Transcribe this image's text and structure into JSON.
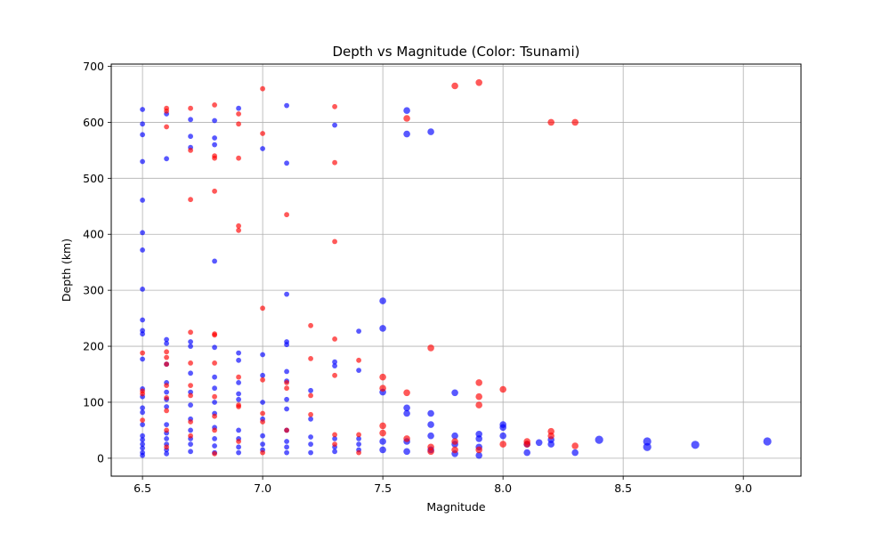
{
  "chart_data": {
    "type": "scatter",
    "title": "Depth vs Magnitude (Color: Tsunami)",
    "xlabel": "Magnitude",
    "ylabel": "Depth (km)",
    "xlim": [
      6.37,
      9.24
    ],
    "ylim": [
      -32,
      704
    ],
    "xticks": [
      "6.5",
      "7.0",
      "7.5",
      "8.0",
      "8.5",
      "9.0"
    ],
    "yticks": [
      "0",
      "100",
      "200",
      "300",
      "400",
      "500",
      "600",
      "700"
    ],
    "grid": true,
    "colors": {
      "tsunami": "#ff0000",
      "no_tsunami": "#0000ff"
    },
    "series": [
      {
        "color": "#0000ff",
        "points": [
          [
            6.5,
            623
          ],
          [
            6.5,
            597
          ],
          [
            6.5,
            578
          ],
          [
            6.5,
            530
          ],
          [
            6.5,
            461
          ],
          [
            6.5,
            403
          ],
          [
            6.5,
            372
          ],
          [
            6.5,
            302
          ],
          [
            6.5,
            247
          ],
          [
            6.5,
            228
          ],
          [
            6.5,
            222
          ],
          [
            6.5,
            177
          ],
          [
            6.5,
            124
          ],
          [
            6.5,
            110
          ],
          [
            6.5,
            90
          ],
          [
            6.5,
            82
          ],
          [
            6.5,
            60
          ],
          [
            6.5,
            40
          ],
          [
            6.5,
            33
          ],
          [
            6.5,
            25
          ],
          [
            6.5,
            18
          ],
          [
            6.5,
            10
          ],
          [
            6.5,
            5
          ],
          [
            6.6,
            615
          ],
          [
            6.6,
            535
          ],
          [
            6.6,
            212
          ],
          [
            6.6,
            205
          ],
          [
            6.6,
            168
          ],
          [
            6.6,
            135
          ],
          [
            6.6,
            118
          ],
          [
            6.6,
            105
          ],
          [
            6.6,
            92
          ],
          [
            6.6,
            60
          ],
          [
            6.6,
            45
          ],
          [
            6.6,
            35
          ],
          [
            6.6,
            25
          ],
          [
            6.6,
            15
          ],
          [
            6.6,
            8
          ],
          [
            6.7,
            605
          ],
          [
            6.7,
            575
          ],
          [
            6.7,
            555
          ],
          [
            6.7,
            208
          ],
          [
            6.7,
            200
          ],
          [
            6.7,
            152
          ],
          [
            6.7,
            118
          ],
          [
            6.7,
            95
          ],
          [
            6.7,
            70
          ],
          [
            6.7,
            50
          ],
          [
            6.7,
            35
          ],
          [
            6.7,
            25
          ],
          [
            6.7,
            12
          ],
          [
            6.8,
            603
          ],
          [
            6.8,
            572
          ],
          [
            6.8,
            560
          ],
          [
            6.8,
            352
          ],
          [
            6.8,
            198
          ],
          [
            6.8,
            145
          ],
          [
            6.8,
            125
          ],
          [
            6.8,
            100
          ],
          [
            6.8,
            80
          ],
          [
            6.8,
            55
          ],
          [
            6.8,
            35
          ],
          [
            6.8,
            22
          ],
          [
            6.8,
            10
          ],
          [
            6.9,
            625
          ],
          [
            6.9,
            188
          ],
          [
            6.9,
            175
          ],
          [
            6.9,
            135
          ],
          [
            6.9,
            115
          ],
          [
            6.9,
            105
          ],
          [
            6.9,
            50
          ],
          [
            6.9,
            35
          ],
          [
            6.9,
            20
          ],
          [
            6.9,
            10
          ],
          [
            7.0,
            553
          ],
          [
            7.0,
            185
          ],
          [
            7.0,
            148
          ],
          [
            7.0,
            100
          ],
          [
            7.0,
            70
          ],
          [
            7.0,
            40
          ],
          [
            7.0,
            25
          ],
          [
            7.0,
            15
          ],
          [
            7.1,
            630
          ],
          [
            7.1,
            527
          ],
          [
            7.1,
            293
          ],
          [
            7.1,
            208
          ],
          [
            7.1,
            203
          ],
          [
            7.1,
            155
          ],
          [
            7.1,
            138
          ],
          [
            7.1,
            105
          ],
          [
            7.1,
            88
          ],
          [
            7.1,
            50
          ],
          [
            7.1,
            30
          ],
          [
            7.1,
            20
          ],
          [
            7.1,
            10
          ],
          [
            7.2,
            121
          ],
          [
            7.2,
            70
          ],
          [
            7.2,
            38
          ],
          [
            7.2,
            25
          ],
          [
            7.2,
            10
          ],
          [
            7.3,
            595
          ],
          [
            7.3,
            172
          ],
          [
            7.3,
            165
          ],
          [
            7.3,
            35
          ],
          [
            7.3,
            20
          ],
          [
            7.3,
            12
          ],
          [
            7.4,
            227
          ],
          [
            7.4,
            157
          ],
          [
            7.4,
            35
          ],
          [
            7.4,
            25
          ],
          [
            7.4,
            15
          ],
          [
            7.5,
            281
          ],
          [
            7.5,
            232
          ],
          [
            7.5,
            118
          ],
          [
            7.5,
            30
          ],
          [
            7.5,
            15
          ],
          [
            7.6,
            621
          ],
          [
            7.6,
            579
          ],
          [
            7.6,
            90
          ],
          [
            7.6,
            80
          ],
          [
            7.6,
            30
          ],
          [
            7.6,
            12
          ],
          [
            7.7,
            583
          ],
          [
            7.7,
            80
          ],
          [
            7.7,
            60
          ],
          [
            7.7,
            40
          ],
          [
            7.7,
            15
          ],
          [
            7.8,
            117
          ],
          [
            7.8,
            40
          ],
          [
            7.8,
            25
          ],
          [
            7.8,
            8
          ],
          [
            7.9,
            43
          ],
          [
            7.9,
            35
          ],
          [
            7.9,
            20
          ],
          [
            7.9,
            5
          ],
          [
            8.0,
            60
          ],
          [
            8.0,
            55
          ],
          [
            8.0,
            40
          ],
          [
            8.1,
            25
          ],
          [
            8.1,
            10
          ],
          [
            8.15,
            28
          ],
          [
            8.2,
            33
          ],
          [
            8.2,
            25
          ],
          [
            8.3,
            10
          ],
          [
            8.4,
            33
          ],
          [
            8.6,
            30
          ],
          [
            8.6,
            20
          ],
          [
            8.8,
            24
          ],
          [
            9.1,
            30
          ]
        ]
      },
      {
        "color": "#ff0000",
        "points": [
          [
            6.5,
            188
          ],
          [
            6.5,
            120
          ],
          [
            6.5,
            115
          ],
          [
            6.5,
            68
          ],
          [
            6.6,
            625
          ],
          [
            6.6,
            620
          ],
          [
            6.6,
            592
          ],
          [
            6.6,
            190
          ],
          [
            6.6,
            180
          ],
          [
            6.6,
            168
          ],
          [
            6.6,
            130
          ],
          [
            6.6,
            108
          ],
          [
            6.6,
            85
          ],
          [
            6.6,
            50
          ],
          [
            6.6,
            20
          ],
          [
            6.7,
            625
          ],
          [
            6.7,
            550
          ],
          [
            6.7,
            462
          ],
          [
            6.7,
            225
          ],
          [
            6.7,
            170
          ],
          [
            6.7,
            130
          ],
          [
            6.7,
            112
          ],
          [
            6.7,
            65
          ],
          [
            6.7,
            40
          ],
          [
            6.8,
            631
          ],
          [
            6.8,
            540
          ],
          [
            6.8,
            536
          ],
          [
            6.8,
            477
          ],
          [
            6.8,
            222
          ],
          [
            6.8,
            220
          ],
          [
            6.8,
            170
          ],
          [
            6.8,
            110
          ],
          [
            6.8,
            75
          ],
          [
            6.8,
            50
          ],
          [
            6.8,
            8
          ],
          [
            6.9,
            615
          ],
          [
            6.9,
            597
          ],
          [
            6.9,
            536
          ],
          [
            6.9,
            415
          ],
          [
            6.9,
            407
          ],
          [
            6.9,
            145
          ],
          [
            6.9,
            95
          ],
          [
            6.9,
            92
          ],
          [
            6.9,
            30
          ],
          [
            7.0,
            660
          ],
          [
            7.0,
            580
          ],
          [
            7.0,
            268
          ],
          [
            7.0,
            140
          ],
          [
            7.0,
            80
          ],
          [
            7.0,
            65
          ],
          [
            7.0,
            10
          ],
          [
            7.1,
            435
          ],
          [
            7.1,
            135
          ],
          [
            7.1,
            125
          ],
          [
            7.1,
            50
          ],
          [
            7.2,
            237
          ],
          [
            7.2,
            178
          ],
          [
            7.2,
            112
          ],
          [
            7.2,
            78
          ],
          [
            7.3,
            628
          ],
          [
            7.3,
            528
          ],
          [
            7.3,
            387
          ],
          [
            7.3,
            213
          ],
          [
            7.3,
            148
          ],
          [
            7.3,
            42
          ],
          [
            7.3,
            25
          ],
          [
            7.4,
            175
          ],
          [
            7.4,
            42
          ],
          [
            7.4,
            10
          ],
          [
            7.5,
            145
          ],
          [
            7.5,
            125
          ],
          [
            7.5,
            58
          ],
          [
            7.5,
            45
          ],
          [
            7.6,
            607
          ],
          [
            7.6,
            117
          ],
          [
            7.6,
            35
          ],
          [
            7.7,
            197
          ],
          [
            7.7,
            20
          ],
          [
            7.7,
            12
          ],
          [
            7.8,
            665
          ],
          [
            7.8,
            30
          ],
          [
            7.8,
            15
          ],
          [
            7.9,
            671
          ],
          [
            7.9,
            135
          ],
          [
            7.9,
            110
          ],
          [
            7.9,
            95
          ],
          [
            7.9,
            15
          ],
          [
            8.0,
            123
          ],
          [
            8.0,
            25
          ],
          [
            8.1,
            30
          ],
          [
            8.1,
            25
          ],
          [
            8.2,
            600
          ],
          [
            8.2,
            48
          ],
          [
            8.2,
            40
          ],
          [
            8.3,
            600
          ],
          [
            8.3,
            22
          ]
        ]
      }
    ]
  }
}
